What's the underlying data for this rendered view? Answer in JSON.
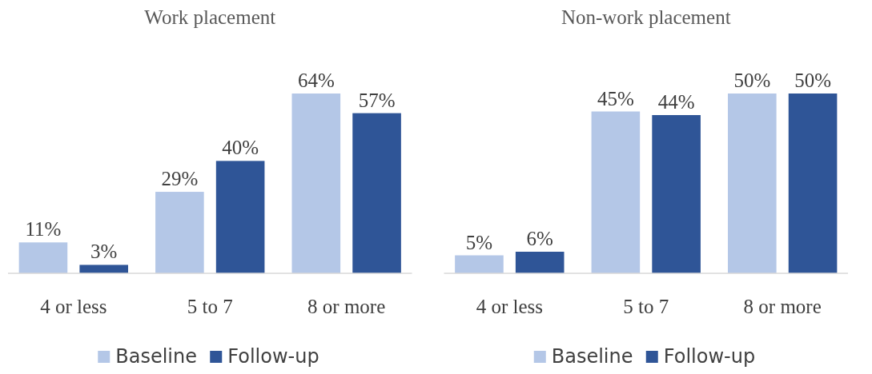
{
  "chart_data": [
    {
      "type": "bar",
      "title": "Work placement",
      "categories": [
        "4 or less",
        "5 to 7",
        "8 or more"
      ],
      "series": [
        {
          "name": "Baseline",
          "color": "#b4c7e7",
          "values": [
            11,
            29,
            64
          ],
          "value_labels": [
            "11%",
            "29%",
            "64%"
          ]
        },
        {
          "name": "Follow-up",
          "color": "#2f5597",
          "values": [
            3,
            40,
            57
          ],
          "value_labels": [
            "3%",
            "40%",
            "57%"
          ]
        }
      ],
      "legend": "bottom"
    },
    {
      "type": "bar",
      "title": "Non-work placement",
      "categories": [
        "4 or less",
        "5 to 7",
        "8 or more"
      ],
      "series": [
        {
          "name": "Baseline",
          "color": "#b4c7e7",
          "values": [
            5,
            45,
            50
          ],
          "value_labels": [
            "5%",
            "45%",
            "50%"
          ]
        },
        {
          "name": "Follow-up",
          "color": "#2f5597",
          "values": [
            6,
            44,
            50
          ],
          "value_labels": [
            "6%",
            "44%",
            "50%"
          ]
        }
      ],
      "legend": "bottom"
    }
  ]
}
